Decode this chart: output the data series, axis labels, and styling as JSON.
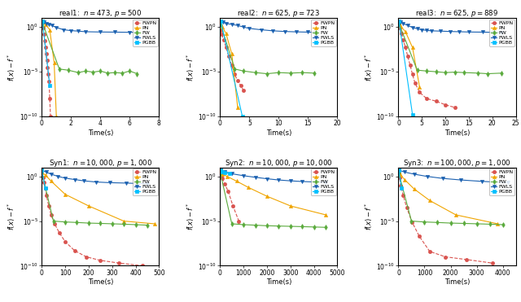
{
  "subplots": [
    {
      "title": "real1:  $n = 473$, $p = 500$",
      "xlabel": "Time(s)",
      "ylabel": "$f(x) - f^*$",
      "xlim": [
        0,
        8
      ],
      "ylim": [
        1e-10,
        10
      ],
      "series": {
        "FWPN": {
          "times": [
            0.05,
            0.1,
            0.15,
            0.2,
            0.25,
            0.3,
            0.35,
            0.4,
            0.45,
            0.5,
            0.55,
            0.6
          ],
          "vals": [
            3.0,
            0.8,
            0.15,
            0.03,
            0.005,
            0.001,
            0.0002,
            3e-05,
            5e-06,
            8e-07,
            1e-08,
            1e-10
          ]
        },
        "PN": {
          "times": [
            0.05,
            0.25,
            0.55,
            0.85,
            1.0
          ],
          "vals": [
            3.5,
            2.0,
            0.5,
            0.0001,
            1e-10
          ]
        },
        "FW": {
          "times": [
            0.05,
            1.2,
            1.8,
            2.5,
            3.0,
            3.5,
            4.0,
            4.5,
            5.0,
            5.5,
            6.0,
            6.5
          ],
          "vals": [
            3.0,
            2e-05,
            1.5e-05,
            8e-06,
            1.2e-05,
            9e-06,
            1.2e-05,
            7e-06,
            8e-06,
            7e-06,
            1.2e-05,
            6e-06
          ]
        },
        "FWLS": {
          "times": [
            0.05,
            0.15,
            0.3,
            0.5,
            0.7,
            1.0,
            1.5,
            2.0,
            2.5,
            3.0,
            4.0,
            5.0,
            6.0,
            6.5
          ],
          "vals": [
            5.0,
            3.5,
            2.5,
            2.0,
            1.5,
            0.9,
            0.5,
            0.4,
            0.35,
            0.3,
            0.28,
            0.27,
            0.26,
            0.25
          ]
        },
        "PGBB": {
          "times": [
            0.05,
            0.55
          ],
          "vals": [
            5.0,
            3e-07
          ]
        }
      }
    },
    {
      "title": "real2:  $n = 625$, $p = 723$",
      "xlabel": "Time(s)",
      "ylabel": "$f(x) - f^*$",
      "xlim": [
        0,
        20
      ],
      "ylim": [
        1e-10,
        10
      ],
      "series": {
        "FWPN": {
          "times": [
            0.1,
            0.3,
            0.6,
            1.0,
            1.5,
            2.0,
            2.5,
            3.0,
            3.5,
            4.0
          ],
          "vals": [
            0.5,
            0.15,
            0.04,
            0.006,
            0.0005,
            5e-05,
            5e-06,
            1e-06,
            3e-07,
            8e-08
          ]
        },
        "PN": {
          "times": [
            0.1,
            0.4,
            1.0,
            2.0,
            3.0
          ],
          "vals": [
            2.0,
            1.0,
            0.2,
            0.001,
            1e-09
          ]
        },
        "FW": {
          "times": [
            0.1,
            2.5,
            4.0,
            6.0,
            8.0,
            10.0,
            12.0,
            14.0,
            16.0
          ],
          "vals": [
            2.0,
            2e-05,
            1.2e-05,
            8e-06,
            6e-06,
            8e-06,
            7e-06,
            8e-06,
            7e-06
          ]
        },
        "FWLS": {
          "times": [
            0.1,
            0.5,
            1.0,
            2.0,
            3.0,
            4.0,
            5.0,
            7.0,
            9.0,
            11.0,
            13.0,
            15.0,
            16.0
          ],
          "vals": [
            5.0,
            3.5,
            2.5,
            2.0,
            1.5,
            1.0,
            0.7,
            0.5,
            0.38,
            0.32,
            0.29,
            0.27,
            0.26
          ]
        },
        "PGBB": {
          "times": [
            0.1,
            3.8
          ],
          "vals": [
            5.0,
            1e-10
          ]
        }
      }
    },
    {
      "title": "real3:  $n = 625$, $p = 889$",
      "xlabel": "Time(s)",
      "ylabel": "$f(x) - f^*$",
      "xlim": [
        0,
        25
      ],
      "ylim": [
        1e-10,
        10
      ],
      "series": {
        "FWPN": {
          "times": [
            0.1,
            0.3,
            0.6,
            1.0,
            1.5,
            2.0,
            2.5,
            3.0,
            3.5,
            4.5,
            6.0,
            8.0,
            10.0,
            12.0
          ],
          "vals": [
            2.0,
            0.8,
            0.2,
            0.04,
            0.005,
            0.0005,
            5e-05,
            5e-06,
            6e-07,
            5e-08,
            1e-08,
            5e-09,
            2e-09,
            1e-09
          ]
        },
        "PN": {
          "times": [
            0.1,
            0.5,
            1.5,
            3.0,
            4.5
          ],
          "vals": [
            2.5,
            1.2,
            0.3,
            0.005,
            2e-07
          ]
        },
        "FW": {
          "times": [
            0.1,
            4.0,
            6.0,
            8.0,
            10.0,
            12.0,
            14.0,
            17.0,
            19.0,
            22.0
          ],
          "vals": [
            2.5,
            1.5e-05,
            1.2e-05,
            1e-05,
            8e-06,
            9e-06,
            8e-06,
            7e-06,
            6e-06,
            7e-06
          ]
        },
        "FWLS": {
          "times": [
            0.1,
            0.5,
            1.0,
            2.0,
            3.0,
            4.0,
            5.0,
            6.0,
            7.0,
            9.0,
            11.0,
            13.0,
            15.0,
            18.0,
            20.0,
            22.0
          ],
          "vals": [
            5.0,
            3.5,
            2.5,
            1.5,
            0.9,
            0.65,
            0.5,
            0.42,
            0.38,
            0.35,
            0.32,
            0.3,
            0.28,
            0.27,
            0.26,
            0.25
          ]
        },
        "PGBB": {
          "times": [
            0.1,
            3.0
          ],
          "vals": [
            5.0,
            1.5e-10
          ]
        }
      }
    },
    {
      "title": "Syn1:  $n = 10,000$, $p = 1,000$",
      "xlabel": "Time(s)",
      "ylabel": "$f(x) - f^*$",
      "xlim": [
        0,
        500
      ],
      "ylim": [
        1e-10,
        10
      ],
      "series": {
        "FWPN": {
          "times": [
            1,
            5,
            10,
            15,
            20,
            30,
            40,
            55,
            75,
            100,
            140,
            190,
            250,
            330,
            430
          ],
          "vals": [
            2.0,
            0.8,
            0.2,
            0.05,
            0.008,
            0.0005,
            5e-05,
            5e-06,
            5e-07,
            5e-08,
            5e-09,
            1e-09,
            4e-10,
            2e-10,
            1e-10
          ]
        },
        "PN": {
          "times": [
            1,
            15,
            40,
            100,
            200,
            350,
            480
          ],
          "vals": [
            2.5,
            1.5,
            0.3,
            0.01,
            0.0005,
            1e-05,
            5e-06
          ]
        },
        "FW": {
          "times": [
            1,
            50,
            100,
            150,
            200,
            250,
            300,
            350,
            400,
            450
          ],
          "vals": [
            2.5,
            1e-05,
            8e-06,
            7e-06,
            6e-06,
            5.5e-06,
            5e-06,
            4.5e-06,
            4e-06,
            3.5e-06
          ]
        },
        "FWLS": {
          "times": [
            1,
            20,
            40,
            70,
            100,
            140,
            180,
            230,
            290,
            360,
            450
          ],
          "vals": [
            5.0,
            3.0,
            1.8,
            1.0,
            0.65,
            0.45,
            0.32,
            0.24,
            0.2,
            0.18,
            0.15
          ]
        },
        "PGBB": {
          "times": [
            1,
            15
          ],
          "vals": [
            5.0,
            0.05
          ]
        }
      }
    },
    {
      "title": "Syn2:  $n = 10,000$, $p = 10,000$",
      "xlabel": "Time(s)",
      "ylabel": "$f(x) - f^*$",
      "xlim": [
        0,
        5000
      ],
      "ylim": [
        1e-10,
        10
      ],
      "series": {
        "FWPN": {
          "times": [
            10,
            50,
            100,
            200,
            350,
            550,
            800
          ],
          "vals": [
            2.0,
            1.2,
            0.6,
            0.15,
            0.02,
            0.0005,
            1e-05
          ]
        },
        "PN": {
          "times": [
            10,
            100,
            300,
            700,
            1200,
            2000,
            3000,
            4500
          ],
          "vals": [
            2.5,
            1.8,
            1.0,
            0.3,
            0.06,
            0.006,
            0.0005,
            5e-05
          ]
        },
        "FW": {
          "times": [
            10,
            500,
            1000,
            1500,
            2000,
            2500,
            3000,
            3500,
            4000,
            4500
          ],
          "vals": [
            2.5,
            5e-06,
            4e-06,
            3.5e-06,
            3e-06,
            2.8e-06,
            2.6e-06,
            2.4e-06,
            2.2e-06,
            2e-06
          ]
        },
        "FWLS": {
          "times": [
            10,
            200,
            500,
            1000,
            1500,
            2000,
            2500,
            3000,
            3500,
            4000,
            4500
          ],
          "vals": [
            5.0,
            3.5,
            2.0,
            1.2,
            0.8,
            0.55,
            0.4,
            0.32,
            0.27,
            0.24,
            0.22
          ]
        },
        "PGBB": {
          "times": [
            10,
            80,
            200,
            400
          ],
          "vals": [
            5.0,
            3.5,
            2.5,
            2.0
          ]
        }
      }
    },
    {
      "title": "Syn3:  $n = 100,000$, $p = 1,000$",
      "xlabel": "Time(s)",
      "ylabel": "$f(x) - f^*$",
      "xlim": [
        0,
        4500
      ],
      "ylim": [
        1e-10,
        10
      ],
      "series": {
        "FWPN": {
          "times": [
            10,
            40,
            90,
            180,
            320,
            520,
            800,
            1200,
            1800,
            2600,
            3600
          ],
          "vals": [
            2.0,
            0.7,
            0.1,
            0.008,
            0.0003,
            8e-06,
            2e-07,
            4e-09,
            1e-09,
            5e-10,
            2e-10
          ]
        },
        "PN": {
          "times": [
            10,
            80,
            250,
            600,
            1200,
            2200,
            3800
          ],
          "vals": [
            2.5,
            1.5,
            0.4,
            0.04,
            0.002,
            5e-05,
            5e-06
          ]
        },
        "FW": {
          "times": [
            10,
            500,
            1000,
            1500,
            2000,
            2500,
            3000,
            3500,
            4000
          ],
          "vals": [
            2.5,
            1e-05,
            8e-06,
            7e-06,
            6e-06,
            5.5e-06,
            5e-06,
            4.5e-06,
            4e-06
          ]
        },
        "FWLS": {
          "times": [
            10,
            250,
            600,
            1100,
            1700,
            2400,
            3200,
            4200
          ],
          "vals": [
            5.0,
            3.0,
            1.8,
            1.0,
            0.6,
            0.4,
            0.28,
            0.2
          ]
        },
        "PGBB": {
          "times": [
            10,
            120
          ],
          "vals": [
            5.0,
            0.05
          ]
        }
      }
    }
  ],
  "legend_order": [
    "FWPN",
    "PN",
    "FW",
    "FWLS",
    "PGBB"
  ],
  "colors": {
    "FWPN": "#d9534f",
    "PN": "#f0a500",
    "FW": "#5aaa3c",
    "FWLS": "#1a60b0",
    "PGBB": "#00bfff"
  },
  "markers": {
    "FWPN": "o",
    "PN": "^",
    "FW": "d",
    "FWLS": "v",
    "PGBB": "s"
  },
  "linestyles": {
    "FWPN": "--",
    "PN": "-",
    "FW": "-",
    "FWLS": "-",
    "PGBB": "-"
  }
}
